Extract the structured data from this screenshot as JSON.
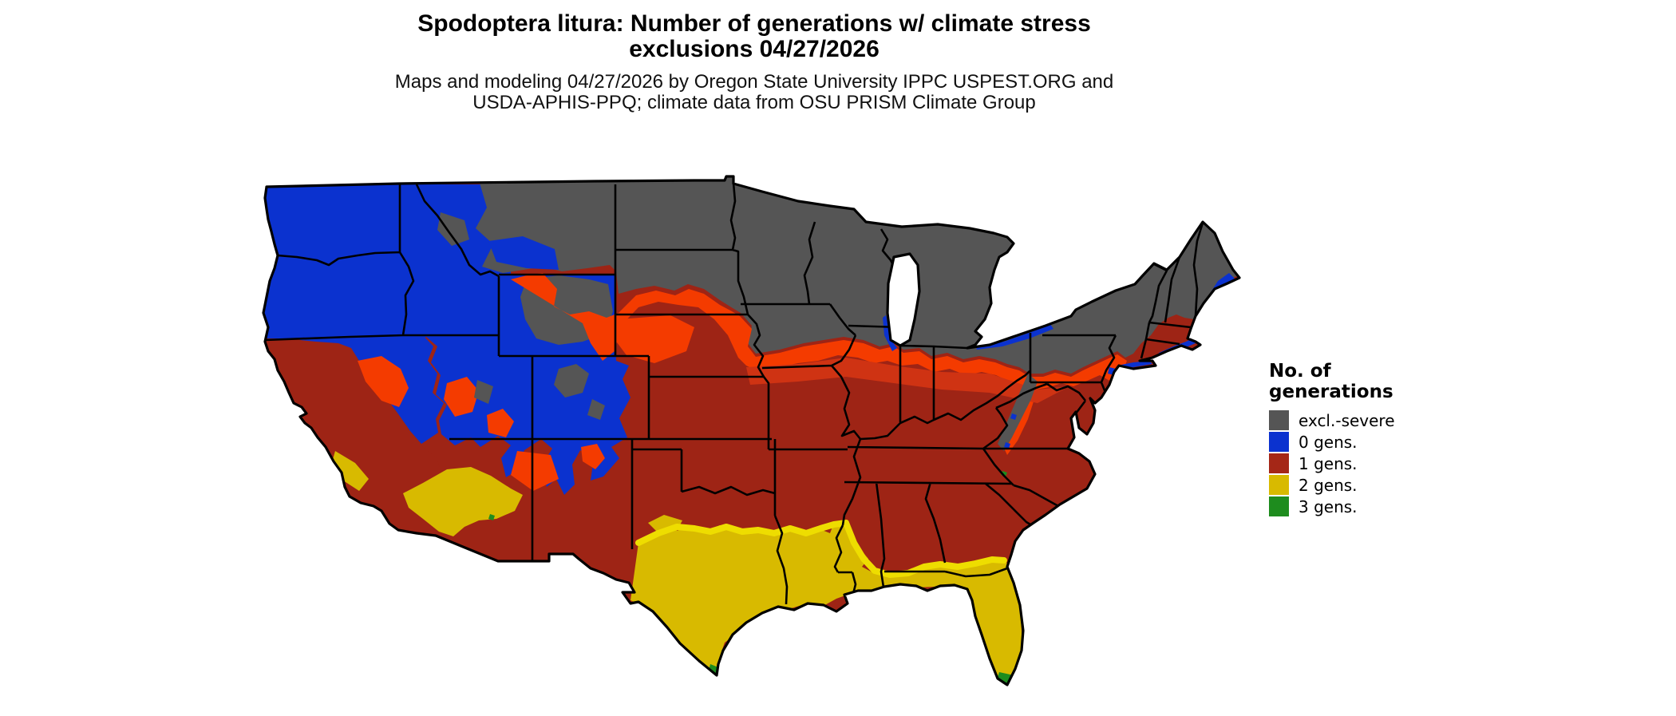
{
  "title": {
    "line1": "Spodoptera litura: Number of generations w/ climate stress",
    "line2": "exclusions 04/27/2026"
  },
  "subtitle": {
    "line1": "Maps and modeling 04/27/2026 by Oregon State University IPPC USPEST.ORG and",
    "line2": "USDA-APHIS-PPQ; climate data from OSU PRISM Climate Group"
  },
  "legend": {
    "title_line1": "No. of",
    "title_line2": "generations",
    "items": [
      {
        "label": "excl.-severe",
        "color": "#555555"
      },
      {
        "label": "0 gens.",
        "color": "#0b32cf"
      },
      {
        "label": "1 gens.",
        "color": "#a52717"
      },
      {
        "label": "2 gens.",
        "color": "#d8ba00"
      },
      {
        "label": "3 gens.",
        "color": "#1e8c1e"
      }
    ]
  },
  "map": {
    "description": "CONUS raster map of Spodoptera litura generations with climate stress exclusions",
    "colors": {
      "excl_severe": "#555555",
      "gens0": "#0b32cf",
      "gens1": "#9e2415",
      "gens1_warm_edge": "#f43b00",
      "gens1_mid_edge": "#cf3313",
      "gens2": "#d8ba00",
      "gens2_bright_edge": "#eedd00",
      "gens3": "#1e8c1e",
      "state_border": "#000000",
      "water_background": "#ffffff"
    },
    "regions_summary": [
      {
        "class": "excl.-severe",
        "area": "Northern tier: ND, SD, MN, WI, MI, northern IA/IL/IN/OH, PA, NY, New England, eastern MT, high Rockies"
      },
      {
        "class": "0 gens.",
        "area": "Pacific Northwest: WA, OR, ID, western MT, NV, UT, western CO, Sierra Nevada, mountain West; coastal New England fringe"
      },
      {
        "class": "1 gens.",
        "area": "California valley/coast, Southwest, southern Plains, Midwest south of gray band, Southeast, Mid-Atlantic"
      },
      {
        "class": "2 gens.",
        "area": "Southern Texas, Gulf Coast, southern Louisiana, most of Florida, low deserts of AZ and SE California"
      },
      {
        "class": "3 gens.",
        "area": "Southern tip of Florida and Keys, southern tip of Texas"
      }
    ]
  }
}
